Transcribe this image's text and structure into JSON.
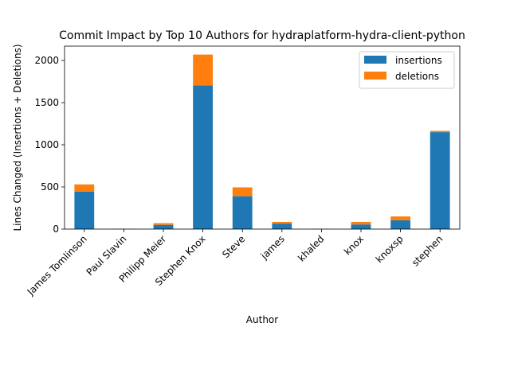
{
  "chart_data": {
    "type": "bar",
    "stacked": true,
    "title": "Commit Impact by Top 10 Authors for hydraplatform-hydra-client-python",
    "xlabel": "Author",
    "ylabel": "Lines Changed (Insertions + Deletions)",
    "categories": [
      "James Tomlinson",
      "Paul Slavin",
      "Philipp Meier",
      "Stephen Knox",
      "Steve",
      "james",
      "khaled",
      "knox",
      "knoxsp",
      "stephen"
    ],
    "series": [
      {
        "name": "insertions",
        "color": "#1f77b4",
        "values": [
          445,
          2,
          50,
          1705,
          390,
          65,
          2,
          55,
          105,
          1150
        ]
      },
      {
        "name": "deletions",
        "color": "#ff7f0e",
        "values": [
          85,
          1,
          20,
          365,
          105,
          20,
          1,
          30,
          45,
          15
        ]
      }
    ],
    "ylim": [
      0,
      2170
    ],
    "yticks": [
      0,
      500,
      1000,
      1500,
      2000
    ],
    "grid": false,
    "legend_position": "top-right"
  }
}
